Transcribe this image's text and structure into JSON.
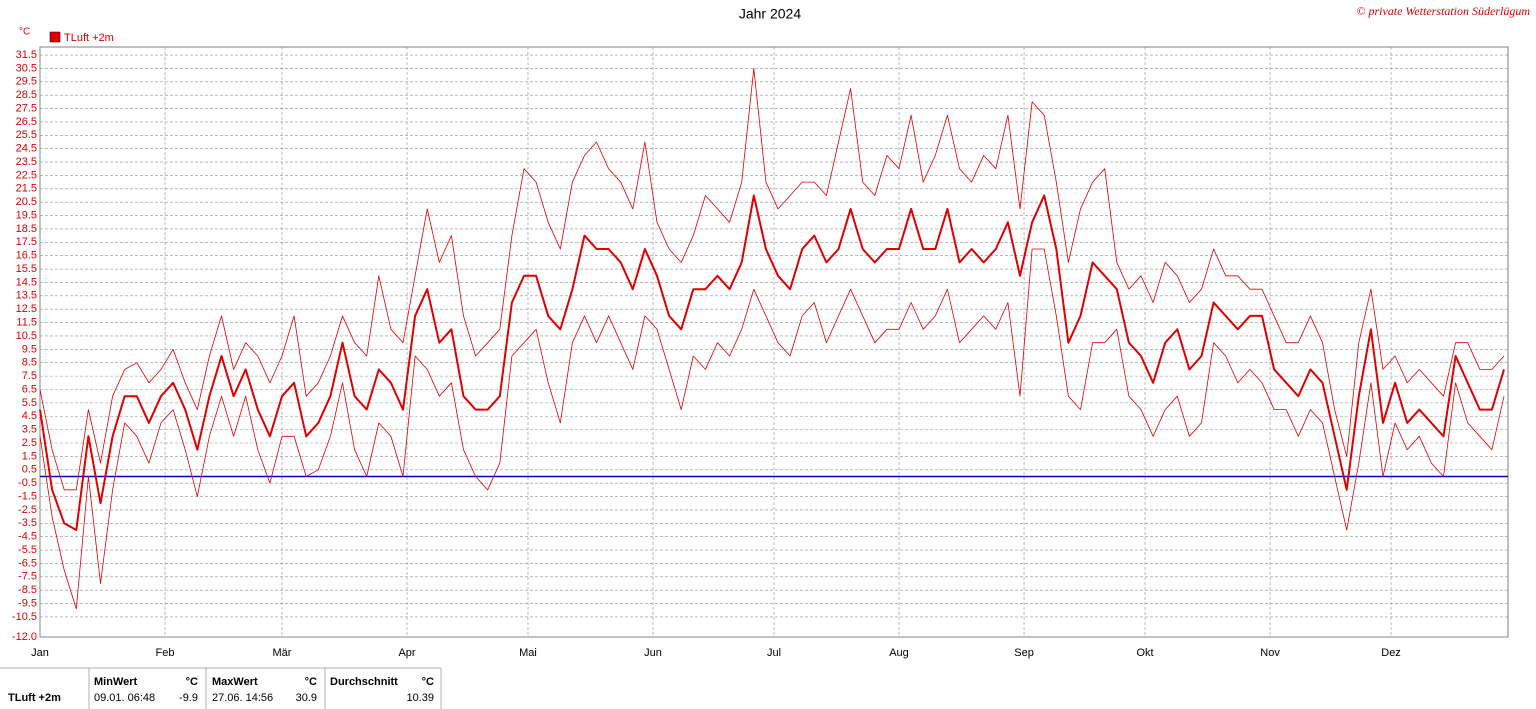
{
  "chart_data": {
    "type": "line",
    "title": "Jahr 2024",
    "copyright": "© private Wetterstation Süderlügum",
    "y_unit": "°C",
    "grid": true,
    "reference_line": {
      "value": 0,
      "color": "#0000cc"
    },
    "xlim": [
      0,
      364
    ],
    "xticks": [
      {
        "value": 0,
        "label": "Jan"
      },
      {
        "value": 31,
        "label": "Feb"
      },
      {
        "value": 60,
        "label": "Mär"
      },
      {
        "value": 91,
        "label": "Apr"
      },
      {
        "value": 121,
        "label": "Mai"
      },
      {
        "value": 152,
        "label": "Jun"
      },
      {
        "value": 182,
        "label": "Jul"
      },
      {
        "value": 213,
        "label": "Aug"
      },
      {
        "value": 244,
        "label": "Sep"
      },
      {
        "value": 274,
        "label": "Okt"
      },
      {
        "value": 305,
        "label": "Nov"
      },
      {
        "value": 335,
        "label": "Dez"
      }
    ],
    "ylim": [
      -12,
      32.1
    ],
    "yticks": [
      31.5,
      30.5,
      29.5,
      28.5,
      27.5,
      26.5,
      25.5,
      24.5,
      23.5,
      22.5,
      21.5,
      20.5,
      19.5,
      18.5,
      17.5,
      16.5,
      15.5,
      14.5,
      13.5,
      12.5,
      11.5,
      10.5,
      9.5,
      8.5,
      7.5,
      6.5,
      5.5,
      4.5,
      3.5,
      2.5,
      1.5,
      0.5,
      -0.5,
      -1.5,
      -2.5,
      -3.5,
      -4.5,
      -5.5,
      -6.5,
      -7.5,
      -8.5,
      -9.5,
      -10.5,
      {
        "value": -12,
        "label": "-12.0"
      }
    ],
    "x": [
      0,
      3,
      6,
      9,
      12,
      15,
      18,
      21,
      24,
      27,
      30,
      33,
      36,
      39,
      42,
      45,
      48,
      51,
      54,
      57,
      60,
      63,
      66,
      69,
      72,
      75,
      78,
      81,
      84,
      87,
      90,
      93,
      96,
      99,
      102,
      105,
      108,
      111,
      114,
      117,
      120,
      123,
      126,
      129,
      132,
      135,
      138,
      141,
      144,
      147,
      150,
      153,
      156,
      159,
      162,
      165,
      168,
      171,
      174,
      177,
      180,
      183,
      186,
      189,
      192,
      195,
      198,
      201,
      204,
      207,
      210,
      213,
      216,
      219,
      222,
      225,
      228,
      231,
      234,
      237,
      240,
      243,
      246,
      249,
      252,
      255,
      258,
      261,
      264,
      267,
      270,
      273,
      276,
      279,
      282,
      285,
      288,
      291,
      294,
      297,
      300,
      303,
      306,
      309,
      312,
      315,
      318,
      321,
      324,
      327,
      330,
      333,
      336,
      339,
      342,
      345,
      348,
      351,
      354,
      357,
      360,
      363
    ],
    "series": [
      {
        "name": "TLuft +2m",
        "color": "#e00000",
        "width": 2,
        "values": [
          5,
          -1,
          -3.5,
          -4,
          3,
          -2,
          3,
          6,
          6,
          4,
          6,
          7,
          5,
          2,
          6,
          9,
          6,
          8,
          5,
          3,
          6,
          7,
          3,
          4,
          6,
          10,
          6,
          5,
          8,
          7,
          5,
          12,
          14,
          10,
          11,
          6,
          5,
          5,
          6,
          13,
          15,
          15,
          12,
          11,
          14,
          18,
          17,
          17,
          16,
          14,
          17,
          15,
          12,
          11,
          14,
          14,
          15,
          14,
          16,
          21,
          17,
          15,
          14,
          17,
          18,
          16,
          17,
          20,
          17,
          16,
          17,
          17,
          20,
          17,
          17,
          20,
          16,
          17,
          16,
          17,
          19,
          15,
          19,
          21,
          17,
          10,
          12,
          16,
          15,
          14,
          10,
          9,
          7,
          10,
          11,
          8,
          9,
          13,
          12,
          11,
          12,
          12,
          8,
          7,
          6,
          8,
          7,
          3,
          -1,
          6,
          11,
          4,
          7,
          4,
          5,
          4,
          3,
          9,
          7,
          5,
          5,
          8
        ]
      },
      {
        "color": "#e00000",
        "width": 0.8,
        "values": [
          6.5,
          2,
          -1,
          -1,
          5,
          1,
          6,
          8,
          8.5,
          7,
          8,
          9.5,
          7,
          5,
          9,
          12,
          8,
          10,
          9,
          7,
          9,
          12,
          6,
          7,
          9,
          12,
          10,
          9,
          15,
          11,
          10,
          15,
          20,
          16,
          18,
          12,
          9,
          10,
          11,
          18,
          23,
          22,
          19,
          17,
          22,
          24,
          25,
          23,
          22,
          20,
          25,
          19,
          17,
          16,
          18,
          21,
          20,
          19,
          22,
          30.5,
          22,
          20,
          21,
          22,
          22,
          21,
          25,
          29,
          22,
          21,
          24,
          23,
          27,
          22,
          24,
          27,
          23,
          22,
          24,
          23,
          27,
          20,
          28,
          27,
          22,
          16,
          20,
          22,
          23,
          16,
          14,
          15,
          13,
          16,
          15,
          13,
          14,
          17,
          15,
          15,
          14,
          14,
          12,
          10,
          10,
          12,
          10,
          5,
          1.5,
          10,
          14,
          8,
          9,
          7,
          8,
          7,
          6,
          10,
          10,
          8,
          8,
          9
        ]
      },
      {
        "color": "#e00000",
        "width": 0.8,
        "values": [
          3,
          -3,
          -7,
          -9.9,
          0,
          -8,
          -1,
          4,
          3,
          1,
          4,
          5,
          2,
          -1.5,
          3,
          6,
          3,
          6,
          2,
          -0.5,
          3,
          3,
          0,
          0.5,
          3,
          7,
          2,
          0,
          4,
          3,
          0,
          9,
          8,
          6,
          7,
          2,
          0,
          -1,
          1,
          9,
          10,
          11,
          7,
          4,
          10,
          12,
          10,
          12,
          10,
          8,
          12,
          11,
          8,
          5,
          9,
          8,
          10,
          9,
          11,
          14,
          12,
          10,
          9,
          12,
          13,
          10,
          12,
          14,
          12,
          10,
          11,
          11,
          13,
          11,
          12,
          14,
          10,
          11,
          12,
          11,
          13,
          6,
          17,
          17,
          12,
          6,
          5,
          10,
          10,
          11,
          6,
          5,
          3,
          5,
          6,
          3,
          4,
          10,
          9,
          7,
          8,
          7,
          5,
          5,
          3,
          5,
          4,
          0,
          -4,
          1,
          7,
          0,
          4,
          2,
          3,
          1,
          0,
          7,
          4,
          3,
          2,
          6
        ]
      }
    ],
    "stats": {
      "series_label": "TLuft +2m",
      "columns": [
        {
          "header": "MinWert",
          "unit": "°C",
          "time": "09.01.  06:48",
          "value": "-9.9"
        },
        {
          "header": "MaxWert",
          "unit": "°C",
          "time": "27.06.  14:56",
          "value": "30.9"
        },
        {
          "header": "Durchschnitt",
          "unit": "°C",
          "value": "10.39"
        }
      ]
    }
  }
}
